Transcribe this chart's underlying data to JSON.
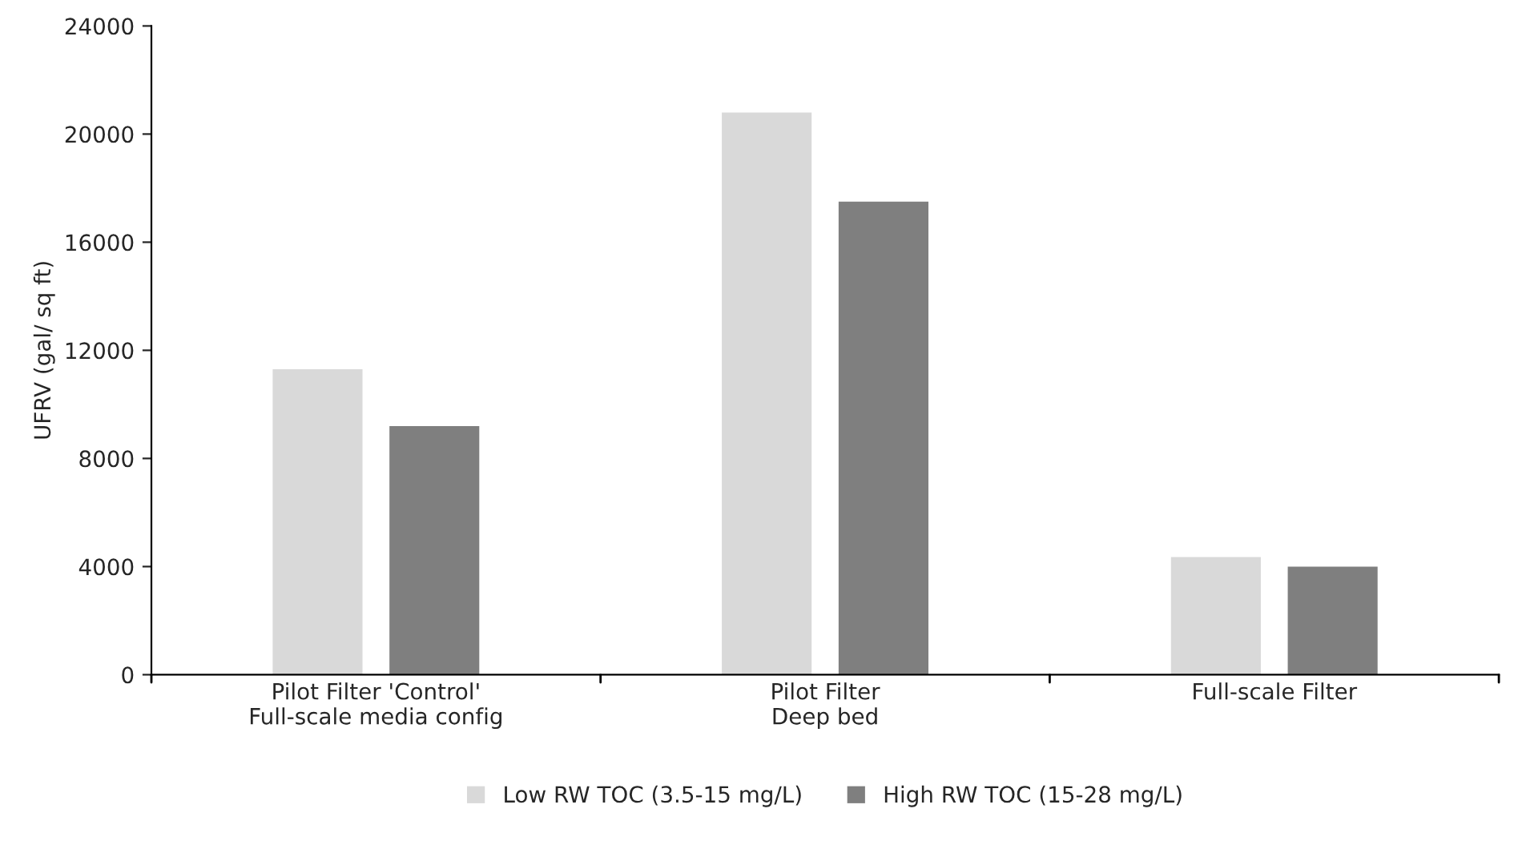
{
  "chart_data": {
    "type": "bar",
    "ylabel": "UFRV (gal/ sq ft)",
    "categories": [
      "Pilot Filter 'Control'\nFull-scale media config",
      "Pilot Filter\nDeep bed",
      "Full-scale Filter"
    ],
    "series": [
      {
        "name": "Low RW TOC (3.5-15 mg/L)",
        "color": "#d9d9d9",
        "values": [
          11300,
          20800,
          4350
        ]
      },
      {
        "name": "High RW TOC (15-28 mg/L)",
        "color": "#7f7f7f",
        "values": [
          9200,
          17500,
          4000
        ]
      }
    ],
    "ylim": [
      0,
      24000
    ],
    "yticks": [
      0,
      4000,
      8000,
      12000,
      16000,
      20000,
      24000
    ],
    "grid": false,
    "legend": "bottom"
  }
}
